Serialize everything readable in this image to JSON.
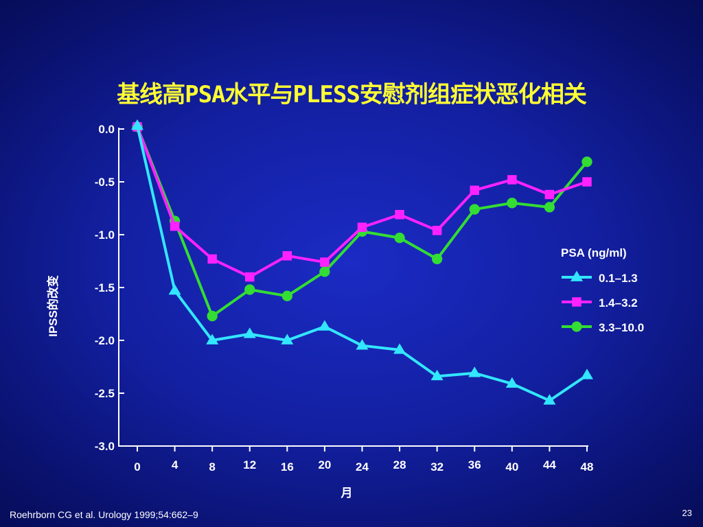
{
  "slide": {
    "title": "基线高PSA水平与PLESS安慰剂组症状恶化相关",
    "citation": "Roehrborn CG et al. Urology 1999;54:662–9",
    "page_number": "23"
  },
  "chart_data": {
    "type": "line",
    "title": "基线高PSA水平与PLESS安慰剂组症状恶化相关",
    "xlabel": "月",
    "ylabel": "IPSS的改变",
    "x": [
      0,
      4,
      8,
      12,
      16,
      20,
      24,
      28,
      32,
      36,
      40,
      44,
      48
    ],
    "x_tick_labels": [
      "0",
      "4",
      "8",
      "12",
      "16",
      "20",
      "24",
      "28",
      "32",
      "36",
      "40",
      "44",
      "48"
    ],
    "y_tick_values": [
      0.0,
      -0.5,
      -1.0,
      -1.5,
      -2.0,
      -2.5,
      -3.0
    ],
    "y_tick_labels": [
      "0.0",
      "-0.5",
      "-1.0",
      "-1.5",
      "-2.0",
      "-2.5",
      "-3.0"
    ],
    "ylim": [
      -3.0,
      0.0
    ],
    "xlim": [
      0,
      48
    ],
    "grid": false,
    "legend": {
      "title": "PSA (ng/ml)",
      "placement": "right"
    },
    "series": [
      {
        "name": "0.1–1.3",
        "color": "#33e6ff",
        "marker": "triangle",
        "values": [
          0.03,
          -1.53,
          -2.0,
          -1.94,
          -2.0,
          -1.87,
          -2.05,
          -2.09,
          -2.34,
          -2.31,
          -2.41,
          -2.57,
          -2.33
        ]
      },
      {
        "name": "1.4–3.2",
        "color": "#ff22ff",
        "marker": "square",
        "values": [
          0.02,
          -0.92,
          -1.23,
          -1.4,
          -1.2,
          -1.26,
          -0.93,
          -0.81,
          -0.96,
          -0.58,
          -0.48,
          -0.62,
          -0.5
        ]
      },
      {
        "name": "3.3–10.0",
        "color": "#33dd33",
        "marker": "circle",
        "values": [
          0.02,
          -0.87,
          -1.77,
          -1.52,
          -1.58,
          -1.35,
          -0.97,
          -1.03,
          -1.23,
          -0.76,
          -0.7,
          -0.74,
          -0.31
        ]
      }
    ]
  }
}
